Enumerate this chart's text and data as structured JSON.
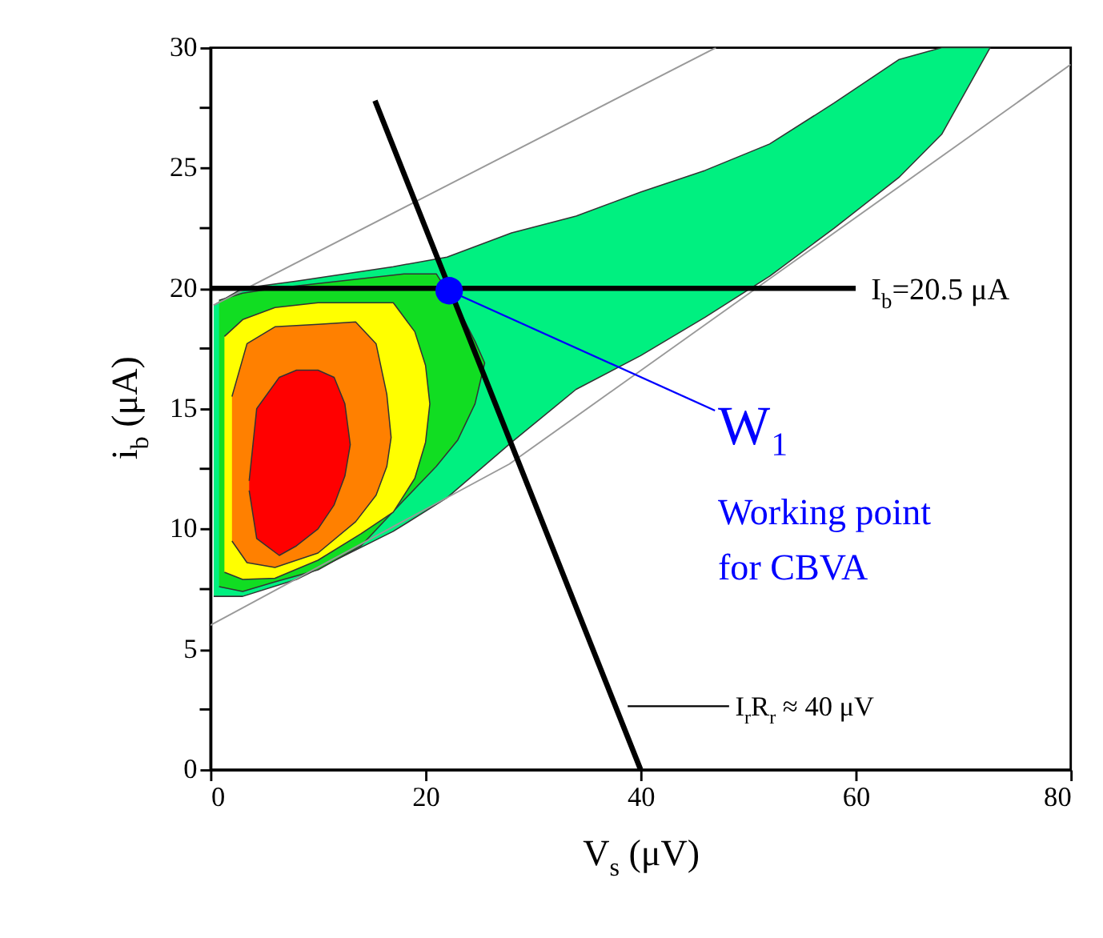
{
  "chart_data": {
    "type": "area",
    "xlabel": "V$_{s}$ (μV)",
    "ylabel": "i$_{b}$ (μA)",
    "xlim": [
      0,
      80
    ],
    "xticks": [
      0,
      20,
      40,
      60,
      80
    ],
    "ylim": [
      0,
      30
    ],
    "yticks": [
      0,
      {
        "value": 2.5,
        "label": null
      },
      5,
      {
        "value": 7.5,
        "label": null
      },
      10,
      {
        "value": 12.5,
        "label": null
      },
      15,
      {
        "value": 17.5,
        "label": null
      },
      20,
      {
        "value": 22.5,
        "label": null
      },
      25,
      {
        "value": 27.5,
        "label": null
      },
      30
    ],
    "grid": false,
    "series": [
      {
        "color": "#00f080",
        "x": [
          0.3,
          3,
          8,
          17,
          22,
          28,
          34,
          40,
          46,
          52,
          58,
          64,
          68,
          72.5,
          68,
          64,
          58,
          52,
          46,
          40,
          34,
          28,
          22,
          17,
          8,
          3,
          0.3
        ],
        "values": [
          7.2,
          7.2,
          7.9,
          9.9,
          11.3,
          13.6,
          15.8,
          17.2,
          18.8,
          20.5,
          22.5,
          24.6,
          26.4,
          30,
          30,
          29.5,
          27.7,
          26.0,
          24.9,
          24.0,
          23.0,
          22.3,
          21.3,
          20.9,
          20.3,
          20.0,
          19.3
        ]
      },
      {
        "color": "#11dd22",
        "x": [
          0.8,
          3,
          6,
          10,
          14,
          18,
          21,
          23,
          24.6,
          25.5,
          24.6,
          23,
          21,
          18,
          14,
          10,
          6,
          3,
          0.8
        ],
        "values": [
          7.6,
          7.4,
          7.8,
          8.3,
          9.3,
          11.2,
          12.6,
          13.7,
          15.2,
          16.9,
          17.8,
          19.2,
          20.6,
          20.6,
          20.4,
          20.2,
          20.0,
          19.8,
          19.5
        ]
      },
      {
        "color": "#ffff00",
        "x": [
          1.3,
          3,
          6,
          10,
          14,
          17,
          19,
          20,
          20.4,
          20,
          19,
          17,
          14,
          10,
          6,
          3,
          1.3
        ],
        "values": [
          8.2,
          7.9,
          7.95,
          8.7,
          9.8,
          10.7,
          12.1,
          13.6,
          15.2,
          16.8,
          18.2,
          19.4,
          19.4,
          19.4,
          19.2,
          18.7,
          18.0
        ]
      },
      {
        "color": "#ff8000",
        "x": [
          2,
          3.4,
          6,
          10,
          13.5,
          15.4,
          16.4,
          16.8,
          16.4,
          15.4,
          13.5,
          10,
          6,
          3.4,
          2
        ],
        "values": [
          9.5,
          8.6,
          8.4,
          9.0,
          10.3,
          11.4,
          12.6,
          13.8,
          15.6,
          17.7,
          18.6,
          18.5,
          18.4,
          17.7,
          15.5
        ]
      },
      {
        "color": "#ff0000",
        "x": [
          3.6,
          4.3,
          6.4,
          8,
          10,
          11.5,
          12.5,
          13,
          12.5,
          11.5,
          10,
          8,
          6.4,
          4.3,
          3.6
        ],
        "values": [
          11.6,
          9.6,
          8.9,
          9.3,
          10.0,
          11.0,
          12.2,
          13.5,
          15.2,
          16.3,
          16.6,
          16.6,
          16.3,
          15.0,
          12.0
        ]
      },
      {
        "type": "line",
        "color": "#999999",
        "x": [
          0.3,
          47
        ],
        "values": [
          19.3,
          30
        ]
      },
      {
        "type": "line",
        "color": "#999999",
        "x": [
          0,
          27.8,
          80
        ],
        "values": [
          6.0,
          12.7,
          29.3
        ]
      },
      {
        "type": "line",
        "color": "#000000",
        "x": [
          0,
          60
        ],
        "values": [
          20,
          20
        ]
      },
      {
        "type": "line",
        "color": "#000000",
        "x": [
          15.3,
          40
        ],
        "values": [
          27.8,
          0
        ]
      },
      {
        "type": "scatter",
        "color": "#0000ff",
        "x": [
          22.2
        ],
        "values": [
          19.9
        ]
      }
    ],
    "annotations": [
      {
        "text": "I$_{b}$=20.5 μA",
        "x": 60,
        "y": 20
      },
      {
        "text": "W₁",
        "x": 22.2,
        "y": 19.9
      },
      "Working point\nfor CBVA",
      "I$_{r}$R$_{r}$ ≈ 40 μV"
    ]
  }
}
